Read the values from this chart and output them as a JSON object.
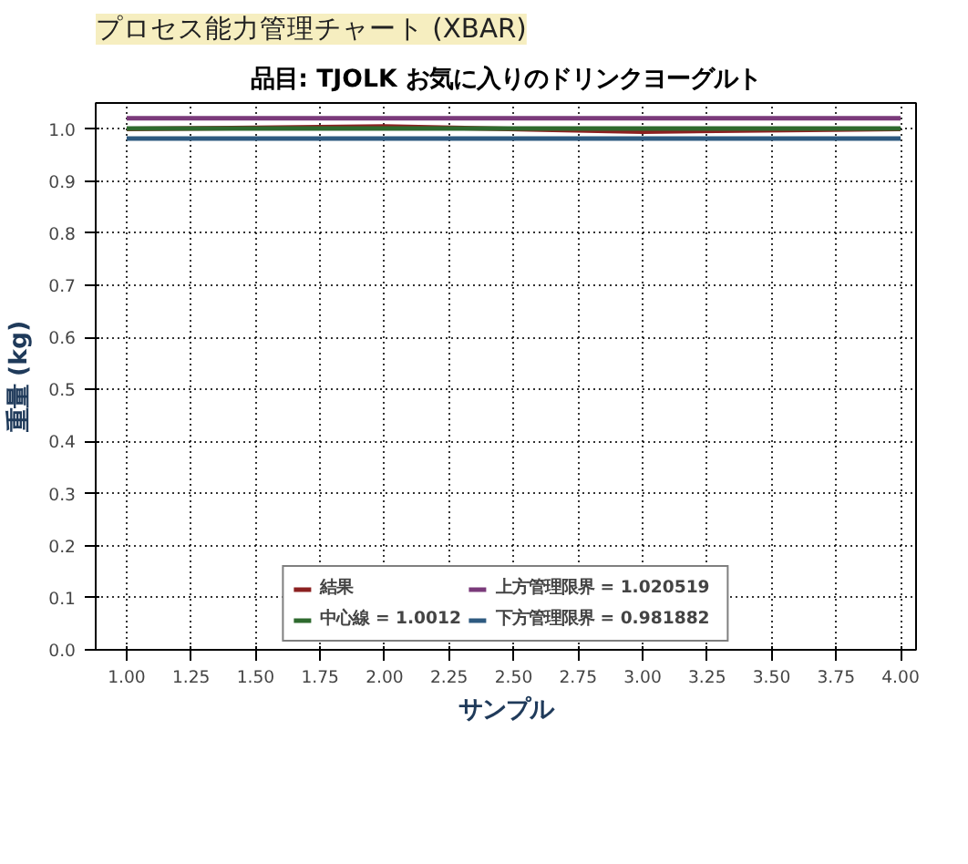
{
  "chart_data": {
    "type": "line",
    "title": "プロセス能力管理チャート (XBAR)",
    "subtitle": "品目: TJOLK お気に入りのドリンクヨーグルト",
    "xlabel": "サンプル",
    "ylabel": "重量 (kg)",
    "x": [
      1,
      2,
      3,
      4
    ],
    "series": [
      {
        "name": "結果",
        "color": "#8b2020",
        "values": [
          1.0,
          1.005,
          0.995,
          1.0
        ]
      },
      {
        "name": "中心線 = 1.0012",
        "color": "#2e6a2e",
        "values": [
          1.0012,
          1.0012,
          1.0012,
          1.0012
        ]
      },
      {
        "name": "上方管理限界 = 1.020519",
        "color": "#7a3a7a",
        "values": [
          1.020519,
          1.020519,
          1.020519,
          1.020519
        ]
      },
      {
        "name": "下方管理限界 = 0.981882",
        "color": "#2e5a80",
        "values": [
          0.981882,
          0.981882,
          0.981882,
          0.981882
        ]
      }
    ],
    "xlim": [
      0.88,
      4.06
    ],
    "ylim": [
      0,
      1.05
    ],
    "xticks": [
      {
        "value": 1,
        "label": "1.00"
      },
      1.25,
      {
        "value": 1.5,
        "label": "1.50"
      },
      1.75,
      {
        "value": 2,
        "label": "2.00"
      },
      2.25,
      {
        "value": 2.5,
        "label": "2.50"
      },
      2.75,
      {
        "value": 3,
        "label": "3.00"
      },
      3.25,
      {
        "value": 3.5,
        "label": "3.50"
      },
      3.75,
      {
        "value": 4,
        "label": "4.00"
      }
    ],
    "yticks": [
      {
        "value": 0,
        "label": "0.0"
      },
      0.1,
      0.2,
      0.3,
      0.4,
      0.5,
      0.6,
      0.7,
      0.8,
      0.9,
      {
        "value": 1,
        "label": "1.0"
      }
    ],
    "grid": true,
    "legend": "bottom",
    "line_style": "solid",
    "marker": "none"
  }
}
